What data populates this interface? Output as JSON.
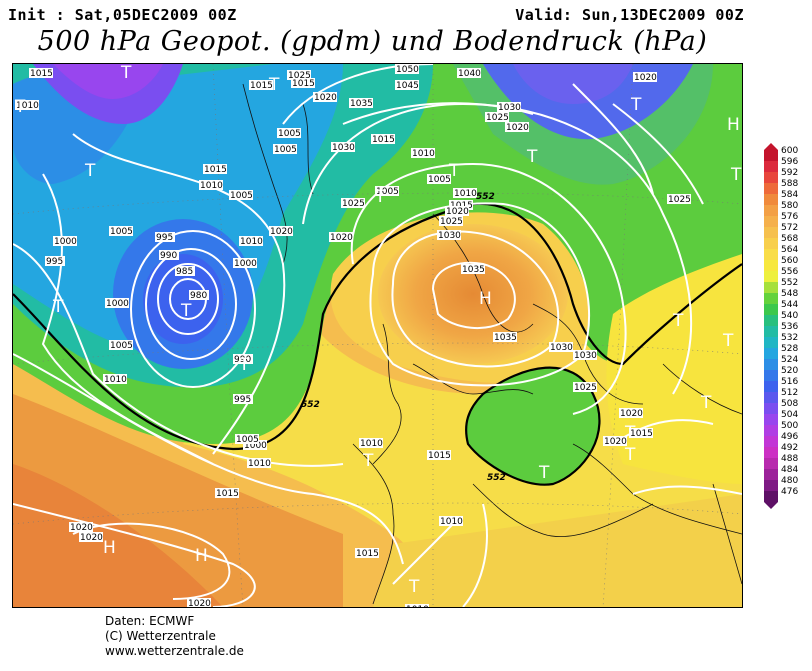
{
  "header": {
    "init": "Init : Sat,05DEC2009 00Z",
    "valid": "Valid: Sun,13DEC2009 00Z",
    "title": "500 hPa Geopot. (gpdm) und Bodendruck (hPa)"
  },
  "footer": {
    "line1": "Daten: ECMWF",
    "line2": "(C) Wetterzentrale",
    "line3": "www.wetterzentrale.de"
  },
  "colorbar": {
    "levels": [
      "600",
      "596",
      "592",
      "588",
      "584",
      "580",
      "576",
      "572",
      "568",
      "564",
      "560",
      "556",
      "552",
      "548",
      "544",
      "540",
      "536",
      "532",
      "528",
      "524",
      "520",
      "516",
      "512",
      "508",
      "504",
      "500",
      "496",
      "492",
      "488",
      "484",
      "480",
      "476"
    ],
    "colors": [
      "#c4142c",
      "#dc2a3c",
      "#e8463c",
      "#ee6a3a",
      "#f08a3c",
      "#f3a046",
      "#f5b04c",
      "#f6c04e",
      "#f8cf4c",
      "#f9dd48",
      "#f7e83e",
      "#eef03e",
      "#a6e03c",
      "#64d23c",
      "#3cc84c",
      "#28c07e",
      "#22bca4",
      "#20b6c4",
      "#24a6e0",
      "#2c8ee6",
      "#3478ea",
      "#3c62ee",
      "#5a58ee",
      "#7a4ef0",
      "#9846ee",
      "#b03ee4",
      "#c236d6",
      "#cc30c4",
      "#b82aae",
      "#9c229a",
      "#7e1a84",
      "#5e1066"
    ]
  },
  "map": {
    "isobars": [
      {
        "text": "1015"
      },
      {
        "text": "1010"
      },
      {
        "text": "1015"
      },
      {
        "text": "1025"
      },
      {
        "text": "1015"
      },
      {
        "text": "1020"
      },
      {
        "text": "1050"
      },
      {
        "text": "1045"
      },
      {
        "text": "1040"
      },
      {
        "text": "1020"
      },
      {
        "text": "1035"
      },
      {
        "text": "1030"
      },
      {
        "text": "1025"
      },
      {
        "text": "1020"
      },
      {
        "text": "1005"
      },
      {
        "text": "1005"
      },
      {
        "text": "1030"
      },
      {
        "text": "1015"
      },
      {
        "text": "1010"
      },
      {
        "text": "1005"
      },
      {
        "text": "1015"
      },
      {
        "text": "1010"
      },
      {
        "text": "1005"
      },
      {
        "text": "1025"
      },
      {
        "text": "1005"
      },
      {
        "text": "1010"
      },
      {
        "text": "1015"
      },
      {
        "text": "1025"
      },
      {
        "text": "1005"
      },
      {
        "text": "995"
      },
      {
        "text": "1020"
      },
      {
        "text": "1020"
      },
      {
        "text": "1020"
      },
      {
        "text": "1025"
      },
      {
        "text": "1030"
      },
      {
        "text": "1000"
      },
      {
        "text": "990"
      },
      {
        "text": "1010"
      },
      {
        "text": "985"
      },
      {
        "text": "1000"
      },
      {
        "text": "995"
      },
      {
        "text": "980"
      },
      {
        "text": "1000"
      },
      {
        "text": "1035"
      },
      {
        "text": "1005"
      },
      {
        "text": "1035"
      },
      {
        "text": "1030"
      },
      {
        "text": "1030"
      },
      {
        "text": "1010"
      },
      {
        "text": "990"
      },
      {
        "text": "995"
      },
      {
        "text": "1000"
      },
      {
        "text": "1025"
      },
      {
        "text": "1005"
      },
      {
        "text": "1020"
      },
      {
        "text": "1015"
      },
      {
        "text": "1010"
      },
      {
        "text": "1010"
      },
      {
        "text": "1015"
      },
      {
        "text": "1015"
      },
      {
        "text": "1020"
      },
      {
        "text": "1020"
      },
      {
        "text": "1010"
      },
      {
        "text": "1015"
      },
      {
        "text": "1020"
      },
      {
        "text": "1020"
      },
      {
        "text": "1010"
      }
    ],
    "contours552": [
      {
        "text": "552"
      },
      {
        "text": "552"
      },
      {
        "text": "552"
      }
    ],
    "symbols": [
      {
        "text": "T"
      },
      {
        "text": "T"
      },
      {
        "text": "T"
      },
      {
        "text": "T"
      },
      {
        "text": "T"
      },
      {
        "text": "T"
      },
      {
        "text": "H"
      },
      {
        "text": "T"
      },
      {
        "text": "T"
      },
      {
        "text": "T"
      },
      {
        "text": "T"
      },
      {
        "text": "T"
      },
      {
        "text": "H"
      },
      {
        "text": "T"
      },
      {
        "text": "T"
      },
      {
        "text": "T"
      },
      {
        "text": "T"
      },
      {
        "text": "T"
      },
      {
        "text": "T"
      },
      {
        "text": "T"
      },
      {
        "text": "H"
      },
      {
        "text": "H"
      },
      {
        "text": "T"
      },
      {
        "text": "T"
      }
    ]
  }
}
